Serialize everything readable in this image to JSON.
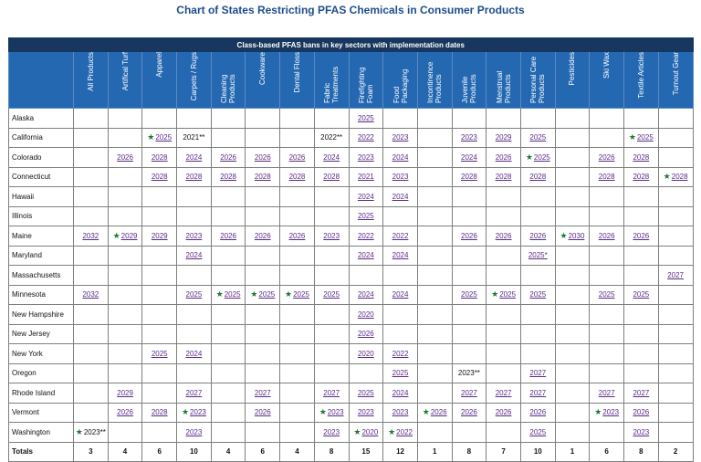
{
  "title": "Chart of States Restricting PFAS Chemicals in Consumer Products",
  "banner": "Class-based PFAS bans in key sectors with implementation dates",
  "columns": [
    "All Products",
    "Artifical Turf",
    "Apparel",
    "Carpets / Rugs",
    "Cleaning Products",
    "Cookware",
    "Dental Floss",
    "Fabric Treatments",
    "Firefighting Foam",
    "Food Packaging",
    "Incontinence Products",
    "Juvenile Products",
    "Menstrual Products",
    "Personal Care Products",
    "Pesticides",
    "Ski Wax",
    "Textile Articles",
    "Turnout Gear"
  ],
  "rows": [
    {
      "state": "Alaska",
      "cells": [
        null,
        null,
        null,
        null,
        null,
        null,
        null,
        null,
        {
          "t": "2025",
          "l": true
        },
        null,
        null,
        null,
        null,
        null,
        null,
        null,
        null,
        null
      ]
    },
    {
      "state": "California",
      "cells": [
        null,
        null,
        {
          "t": "2025",
          "l": true,
          "s": true
        },
        {
          "t": "2021**"
        },
        null,
        null,
        null,
        {
          "t": "2022**"
        },
        {
          "t": "2022",
          "l": true
        },
        {
          "t": "2023",
          "l": true
        },
        null,
        {
          "t": "2023",
          "l": true
        },
        {
          "t": "2029",
          "l": true
        },
        {
          "t": "2025",
          "l": true
        },
        null,
        null,
        {
          "t": "2025",
          "l": true,
          "s": true
        },
        null
      ]
    },
    {
      "state": "Colorado",
      "cells": [
        null,
        {
          "t": "2026",
          "l": true
        },
        {
          "t": "2028",
          "l": true
        },
        {
          "t": "2024",
          "l": true
        },
        {
          "t": "2026",
          "l": true
        },
        {
          "t": "2026",
          "l": true
        },
        {
          "t": "2026",
          "l": true
        },
        {
          "t": "2024",
          "l": true
        },
        {
          "t": "2023",
          "l": true
        },
        {
          "t": "2024",
          "l": true
        },
        null,
        {
          "t": "2024",
          "l": true
        },
        {
          "t": "2026",
          "l": true
        },
        {
          "t": "2025",
          "l": true,
          "s": true
        },
        null,
        {
          "t": "2026",
          "l": true
        },
        {
          "t": "2028",
          "l": true
        },
        null
      ]
    },
    {
      "state": "Connecticut",
      "cells": [
        null,
        null,
        {
          "t": "2028",
          "l": true
        },
        {
          "t": "2028",
          "l": true
        },
        {
          "t": "2028",
          "l": true
        },
        {
          "t": "2028",
          "l": true
        },
        {
          "t": "2028",
          "l": true
        },
        {
          "t": "2028",
          "l": true
        },
        {
          "t": "2021",
          "l": true
        },
        {
          "t": "2023",
          "l": true
        },
        null,
        {
          "t": "2028",
          "l": true
        },
        {
          "t": "2028",
          "l": true
        },
        {
          "t": "2028",
          "l": true
        },
        null,
        {
          "t": "2028",
          "l": true
        },
        {
          "t": "2028",
          "l": true
        },
        {
          "t": "2028",
          "l": true,
          "s": true
        }
      ]
    },
    {
      "state": "Hawaii",
      "cells": [
        null,
        null,
        null,
        null,
        null,
        null,
        null,
        null,
        {
          "t": "2024",
          "l": true
        },
        {
          "t": "2024",
          "l": true
        },
        null,
        null,
        null,
        null,
        null,
        null,
        null,
        null
      ]
    },
    {
      "state": "Illinois",
      "cells": [
        null,
        null,
        null,
        null,
        null,
        null,
        null,
        null,
        {
          "t": "2025",
          "l": true
        },
        null,
        null,
        null,
        null,
        null,
        null,
        null,
        null,
        null
      ]
    },
    {
      "state": "Maine",
      "cells": [
        {
          "t": "2032",
          "l": true
        },
        {
          "t": "2029",
          "l": true,
          "s": true
        },
        {
          "t": "2029",
          "l": true
        },
        {
          "t": "2023",
          "l": true
        },
        {
          "t": "2026",
          "l": true
        },
        {
          "t": "2026",
          "l": true
        },
        {
          "t": "2026",
          "l": true
        },
        {
          "t": "2023",
          "l": true
        },
        {
          "t": "2022",
          "l": true
        },
        {
          "t": "2022",
          "l": true
        },
        null,
        {
          "t": "2026",
          "l": true
        },
        {
          "t": "2026",
          "l": true
        },
        {
          "t": "2026",
          "l": true
        },
        {
          "t": "2030",
          "l": true,
          "s": true
        },
        {
          "t": "2026",
          "l": true
        },
        {
          "t": "2026",
          "l": true
        },
        null
      ]
    },
    {
      "state": "Maryland",
      "cells": [
        null,
        null,
        null,
        {
          "t": "2024",
          "l": true
        },
        null,
        null,
        null,
        null,
        {
          "t": "2024",
          "l": true
        },
        {
          "t": "2024",
          "l": true
        },
        null,
        null,
        null,
        {
          "t": "2025*",
          "l": true
        },
        null,
        null,
        null,
        null
      ]
    },
    {
      "state": "Massachusetts",
      "cells": [
        null,
        null,
        null,
        null,
        null,
        null,
        null,
        null,
        null,
        null,
        null,
        null,
        null,
        null,
        null,
        null,
        null,
        {
          "t": "2027",
          "l": true
        }
      ]
    },
    {
      "state": "Minnesota",
      "cells": [
        {
          "t": "2032",
          "l": true
        },
        null,
        null,
        {
          "t": "2025",
          "l": true
        },
        {
          "t": "2025",
          "l": true,
          "s": true
        },
        {
          "t": "2025",
          "l": true,
          "s": true
        },
        {
          "t": "2025",
          "l": true,
          "s": true
        },
        {
          "t": "2025",
          "l": true
        },
        {
          "t": "2024",
          "l": true
        },
        {
          "t": "2024",
          "l": true
        },
        null,
        {
          "t": "2025",
          "l": true
        },
        {
          "t": "2025",
          "l": true,
          "s": true
        },
        {
          "t": "2025",
          "l": true
        },
        null,
        {
          "t": "2025",
          "l": true
        },
        {
          "t": "2025",
          "l": true
        },
        null
      ]
    },
    {
      "state": "New Hampshire",
      "cells": [
        null,
        null,
        null,
        null,
        null,
        null,
        null,
        null,
        {
          "t": "2020",
          "l": true
        },
        null,
        null,
        null,
        null,
        null,
        null,
        null,
        null,
        null
      ]
    },
    {
      "state": "New Jersey",
      "cells": [
        null,
        null,
        null,
        null,
        null,
        null,
        null,
        null,
        {
          "t": "2026",
          "l": true
        },
        null,
        null,
        null,
        null,
        null,
        null,
        null,
        null,
        null
      ]
    },
    {
      "state": "New York",
      "cells": [
        null,
        null,
        {
          "t": "2025",
          "l": true
        },
        {
          "t": "2024",
          "l": true
        },
        null,
        null,
        null,
        null,
        {
          "t": "2020",
          "l": true
        },
        {
          "t": "2022",
          "l": true
        },
        null,
        null,
        null,
        null,
        null,
        null,
        null,
        null
      ]
    },
    {
      "state": "Oregon",
      "cells": [
        null,
        null,
        null,
        null,
        null,
        null,
        null,
        null,
        null,
        {
          "t": "2025",
          "l": true
        },
        null,
        {
          "t": "2023**"
        },
        null,
        {
          "t": "2027",
          "l": true
        },
        null,
        null,
        null,
        null
      ]
    },
    {
      "state": "Rhode Island",
      "cells": [
        null,
        {
          "t": "2029",
          "l": true
        },
        null,
        {
          "t": "2027",
          "l": true
        },
        null,
        {
          "t": "2027",
          "l": true
        },
        null,
        {
          "t": "2027",
          "l": true
        },
        {
          "t": "2025",
          "l": true
        },
        {
          "t": "2024",
          "l": true
        },
        null,
        {
          "t": "2027",
          "l": true
        },
        {
          "t": "2027",
          "l": true
        },
        {
          "t": "2027",
          "l": true
        },
        null,
        {
          "t": "2027",
          "l": true
        },
        {
          "t": "2027",
          "l": true
        },
        null
      ]
    },
    {
      "state": "Vermont",
      "cells": [
        null,
        {
          "t": "2026",
          "l": true
        },
        {
          "t": "2028",
          "l": true
        },
        {
          "t": "2023",
          "l": true,
          "s": true
        },
        null,
        {
          "t": "2026",
          "l": true
        },
        null,
        {
          "t": "2023",
          "l": true,
          "s": true
        },
        {
          "t": "2023",
          "l": true
        },
        {
          "t": "2023",
          "l": true
        },
        {
          "t": "2026",
          "l": true,
          "s": true
        },
        {
          "t": "2026",
          "l": true
        },
        {
          "t": "2026",
          "l": true
        },
        {
          "t": "2026",
          "l": true
        },
        null,
        {
          "t": "2023",
          "l": true,
          "s": true
        },
        {
          "t": "2026",
          "l": true
        },
        null
      ]
    },
    {
      "state": "Washington",
      "cells": [
        {
          "t": "2023**",
          "s": true
        },
        null,
        null,
        {
          "t": "2023",
          "l": true
        },
        null,
        null,
        null,
        {
          "t": "2023",
          "l": true
        },
        {
          "t": "2020",
          "l": true,
          "s": true
        },
        {
          "t": "2022",
          "l": true,
          "s": true
        },
        null,
        null,
        null,
        {
          "t": "2025",
          "l": true
        },
        null,
        null,
        {
          "t": "2023",
          "l": true
        },
        null
      ]
    }
  ],
  "totals_label": "Totals",
  "totals": [
    "3",
    "4",
    "6",
    "10",
    "4",
    "6",
    "4",
    "8",
    "15",
    "12",
    "1",
    "8",
    "7",
    "10",
    "1",
    "6",
    "8",
    "2"
  ]
}
